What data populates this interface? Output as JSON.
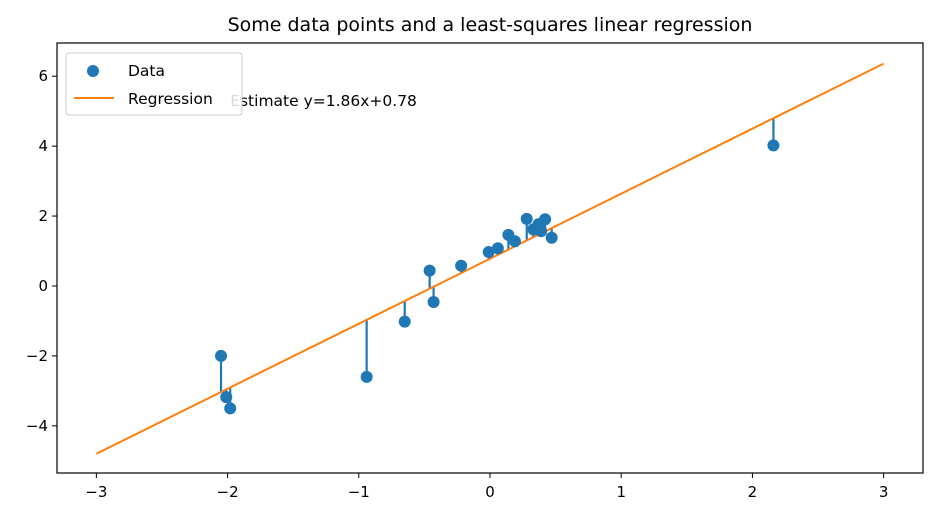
{
  "chart_data": {
    "type": "scatter",
    "title": "Some data points and a least-squares linear regression",
    "xlabel": "",
    "ylabel": "",
    "xlim": [
      -3.3,
      3.3
    ],
    "ylim": [
      -5.35,
      6.95
    ],
    "xticks": [
      -3,
      -2,
      -1,
      0,
      1,
      2,
      3
    ],
    "yticks": [
      -4,
      -2,
      0,
      2,
      4,
      6
    ],
    "grid": false,
    "legend_position": "top-left",
    "series": [
      {
        "name": "Data",
        "kind": "scatter",
        "color": "#1f77b4",
        "x": [
          -2.05,
          -2.01,
          -1.98,
          -0.94,
          -0.65,
          -0.46,
          -0.43,
          -0.22,
          -0.01,
          0.06,
          0.14,
          0.19,
          0.28,
          0.33,
          0.37,
          0.39,
          0.42,
          0.47,
          2.16
        ],
        "y": [
          -2.0,
          -3.18,
          -3.5,
          -2.6,
          -1.02,
          0.44,
          -0.46,
          0.58,
          0.97,
          1.08,
          1.46,
          1.28,
          1.92,
          1.62,
          1.77,
          1.57,
          1.91,
          1.38,
          4.02
        ]
      },
      {
        "name": "Regression",
        "kind": "line",
        "color": "#ff7f0e",
        "x": [
          -3,
          3
        ],
        "y": [
          -4.8,
          6.36
        ]
      }
    ],
    "regression": {
      "slope": 1.86,
      "intercept": 0.78
    },
    "residual_color": "#1f77b4",
    "annotation": {
      "text": "Estimate y=1.86x+0.78",
      "x": -1.98,
      "y": 5.15
    }
  }
}
